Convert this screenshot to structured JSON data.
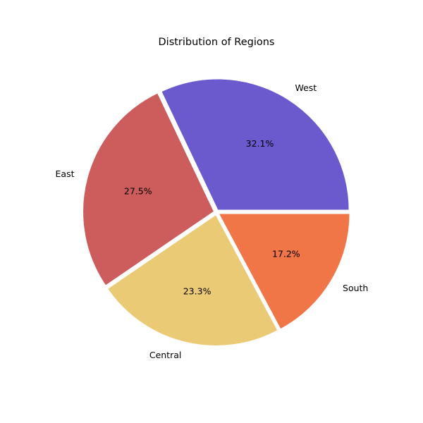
{
  "chart_data": {
    "type": "pie",
    "title": "Distribution of Regions",
    "start_angle_deg": 0,
    "direction": "counterclockwise",
    "slices": [
      {
        "label": "West",
        "value": 32.1,
        "pct_label": "32.1%",
        "color": "#6a5acd"
      },
      {
        "label": "East",
        "value": 27.5,
        "pct_label": "27.5%",
        "color": "#cd5c5c"
      },
      {
        "label": "Central",
        "value": 23.3,
        "pct_label": "23.3%",
        "color": "#ebca76"
      },
      {
        "label": "South",
        "value": 17.2,
        "pct_label": "17.2%",
        "color": "#f07547"
      }
    ],
    "edge_color": "#ffffff"
  }
}
